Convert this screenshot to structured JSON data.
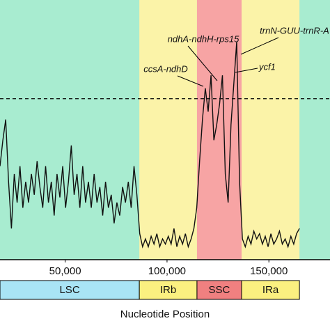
{
  "chart_data": {
    "type": "line",
    "xlabel": "Nucleotide Position",
    "xlim": [
      18000,
      180000
    ],
    "ylim": [
      0,
      1
    ],
    "xticks": [
      {
        "value": 50000,
        "label": "50,000"
      },
      {
        "value": 100000,
        "label": "100,000"
      },
      {
        "value": 150000,
        "label": "150,000"
      }
    ],
    "threshold": 0.62,
    "plot_color": "#a8ecd0",
    "regions": [
      {
        "name": "LSC",
        "start": 18000,
        "end": 86400,
        "color": "#a8ecd0",
        "bar_color": "#a9e4f5"
      },
      {
        "name": "IRb",
        "start": 86400,
        "end": 114700,
        "color": "#fbf3a8",
        "bar_color": "#fbf080"
      },
      {
        "name": "SSC",
        "start": 114700,
        "end": 136600,
        "color": "#f7a4a4",
        "bar_color": "#f08080"
      },
      {
        "name": "IRa",
        "start": 136600,
        "end": 165000,
        "color": "#fbf3a8",
        "bar_color": "#fbf080"
      }
    ],
    "annotations": [
      "ndhA-ndhH-rps15",
      "ccsA-ndhD",
      "trnN-GUU-trnR-A",
      "ycf1"
    ],
    "series": [
      {
        "color": "#111111",
        "x": [
          18000,
          19400,
          20800,
          22200,
          23600,
          25000,
          26400,
          27800,
          29200,
          30600,
          32000,
          33400,
          34800,
          36200,
          37600,
          39000,
          40400,
          41800,
          43200,
          44600,
          46000,
          47400,
          48800,
          50200,
          51600,
          53000,
          54400,
          55800,
          57200,
          58600,
          60000,
          61400,
          62800,
          64200,
          65600,
          67000,
          68400,
          69800,
          71200,
          72600,
          74000,
          75400,
          76800,
          78200,
          79600,
          81000,
          82400,
          83800,
          85200,
          86600,
          88000,
          89400,
          90800,
          92200,
          93600,
          95000,
          96400,
          97800,
          99200,
          100600,
          102000,
          103400,
          104800,
          106200,
          107600,
          109000,
          110400,
          111800,
          113200,
          114600,
          116000,
          117400,
          118800,
          120200,
          121600,
          123000,
          124400,
          125800,
          127200,
          128600,
          130000,
          131400,
          132800,
          134200,
          135600,
          137000,
          138400,
          139800,
          141200,
          142600,
          144000,
          145400,
          146800,
          148200,
          149600,
          151000,
          152400,
          153800,
          155200,
          156600,
          158000,
          159400,
          160800,
          162200,
          163600,
          165000
        ],
        "values": [
          0.36,
          0.46,
          0.54,
          0.3,
          0.12,
          0.33,
          0.22,
          0.36,
          0.2,
          0.3,
          0.22,
          0.33,
          0.25,
          0.38,
          0.28,
          0.2,
          0.36,
          0.22,
          0.3,
          0.17,
          0.33,
          0.24,
          0.36,
          0.2,
          0.3,
          0.44,
          0.25,
          0.33,
          0.2,
          0.36,
          0.22,
          0.3,
          0.2,
          0.33,
          0.22,
          0.28,
          0.17,
          0.3,
          0.2,
          0.25,
          0.14,
          0.22,
          0.17,
          0.28,
          0.22,
          0.3,
          0.2,
          0.36,
          0.25,
          0.1,
          0.05,
          0.08,
          0.05,
          0.09,
          0.06,
          0.1,
          0.05,
          0.08,
          0.06,
          0.09,
          0.06,
          0.12,
          0.05,
          0.09,
          0.06,
          0.1,
          0.05,
          0.08,
          0.12,
          0.2,
          0.38,
          0.54,
          0.66,
          0.57,
          0.71,
          0.46,
          0.52,
          0.6,
          0.71,
          0.33,
          0.22,
          0.52,
          0.68,
          0.84,
          0.3,
          0.08,
          0.05,
          0.09,
          0.06,
          0.11,
          0.08,
          0.1,
          0.06,
          0.09,
          0.05,
          0.1,
          0.06,
          0.08,
          0.11,
          0.06,
          0.08,
          0.05,
          0.09,
          0.06,
          0.1,
          0.12
        ]
      }
    ]
  }
}
